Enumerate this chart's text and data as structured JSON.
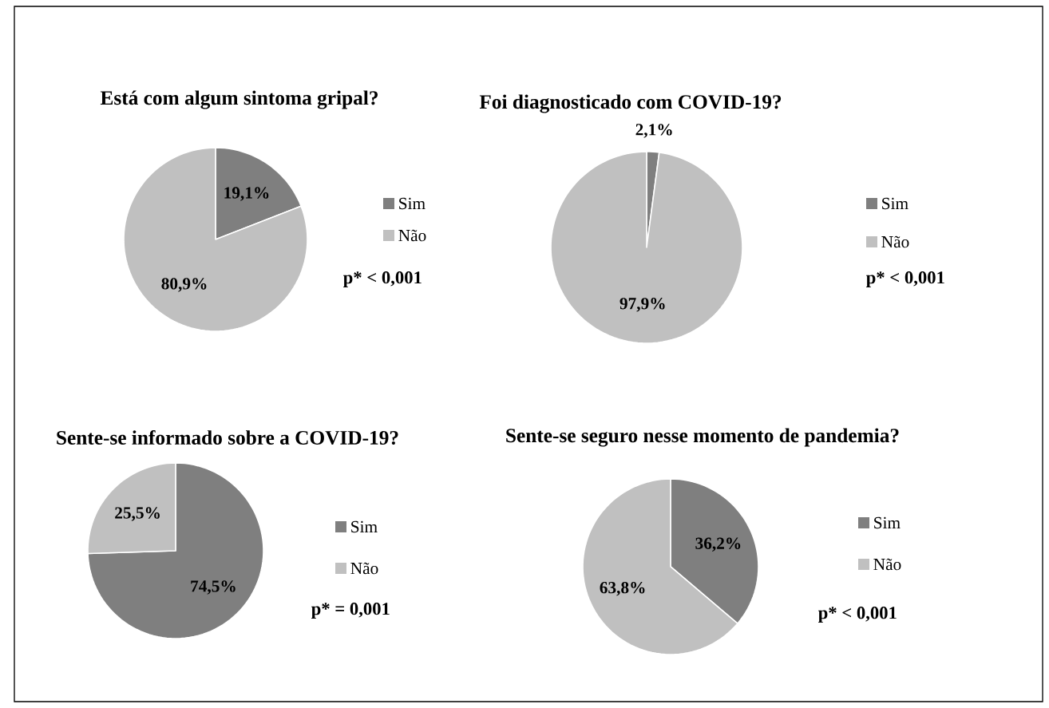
{
  "chart_data": [
    {
      "type": "pie",
      "title": "Está com algum sintoma gripal?",
      "categories": [
        "Sim",
        "Não"
      ],
      "values": [
        19.1,
        80.9
      ],
      "colors": [
        "#7f7f7f",
        "#c0c0c0"
      ],
      "value_labels": [
        "19,1%",
        "80,9%"
      ],
      "legend": "right",
      "annotations": [
        "p* < 0,001"
      ]
    },
    {
      "type": "pie",
      "title": "Foi diagnosticado com COVID-19?",
      "categories": [
        "Sim",
        "Não"
      ],
      "values": [
        2.1,
        97.9
      ],
      "colors": [
        "#7f7f7f",
        "#c0c0c0"
      ],
      "value_labels": [
        "2,1%",
        "97,9%"
      ],
      "legend": "right",
      "annotations": [
        "p* < 0,001"
      ]
    },
    {
      "type": "pie",
      "title": "Sente-se informado sobre a COVID-19?",
      "categories": [
        "Sim",
        "Não"
      ],
      "values": [
        74.5,
        25.5
      ],
      "colors": [
        "#7f7f7f",
        "#c0c0c0"
      ],
      "value_labels": [
        "74,5%",
        "25,5%"
      ],
      "legend": "right",
      "annotations": [
        "p* = 0,001"
      ]
    },
    {
      "type": "pie",
      "title": "Sente-se seguro nesse momento de pandemia?",
      "categories": [
        "Sim",
        "Não"
      ],
      "values": [
        36.2,
        63.8
      ],
      "colors": [
        "#7f7f7f",
        "#c0c0c0"
      ],
      "value_labels": [
        "36,2%",
        "63,8%"
      ],
      "legend": "right",
      "annotations": [
        "p* < 0,001"
      ]
    }
  ]
}
